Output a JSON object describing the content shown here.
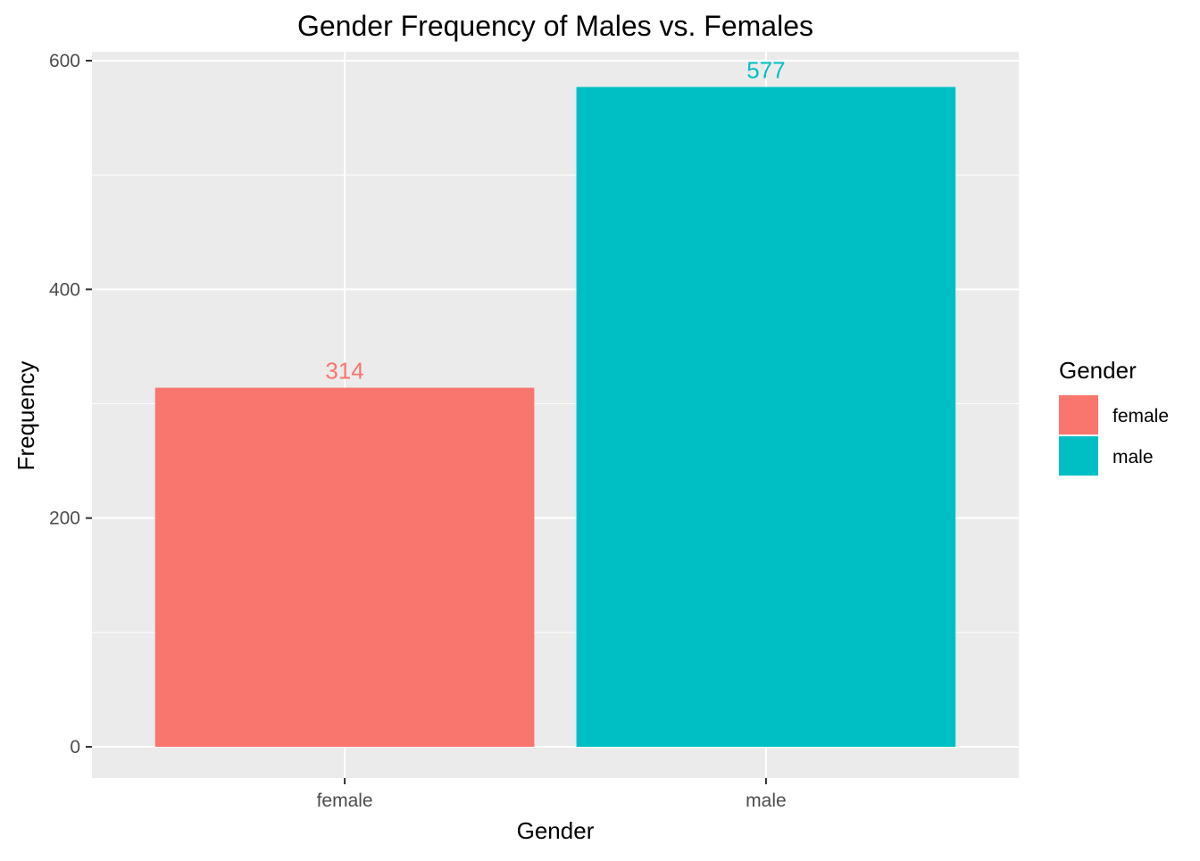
{
  "chart_data": {
    "type": "bar",
    "title": "Gender Frequency of Males vs. Females",
    "xlabel": "Gender",
    "ylabel": "Frequency",
    "categories": [
      "female",
      "male"
    ],
    "values": [
      314,
      577
    ],
    "data_labels": [
      "314",
      "577"
    ],
    "colors": [
      "#F8766D",
      "#00BFC4"
    ],
    "ylim": [
      0,
      600
    ],
    "y_ticks": [
      0,
      200,
      400,
      600
    ],
    "y_tick_labels": [
      "0",
      "200",
      "400",
      "600"
    ],
    "grid": true,
    "panel_background": "#EBEBEB",
    "gridline_color": "#FFFFFF",
    "legend": {
      "title": "Gender",
      "placement": "right",
      "entries": [
        {
          "label": "female",
          "color": "#F8766D"
        },
        {
          "label": "male",
          "color": "#00BFC4"
        }
      ]
    }
  }
}
